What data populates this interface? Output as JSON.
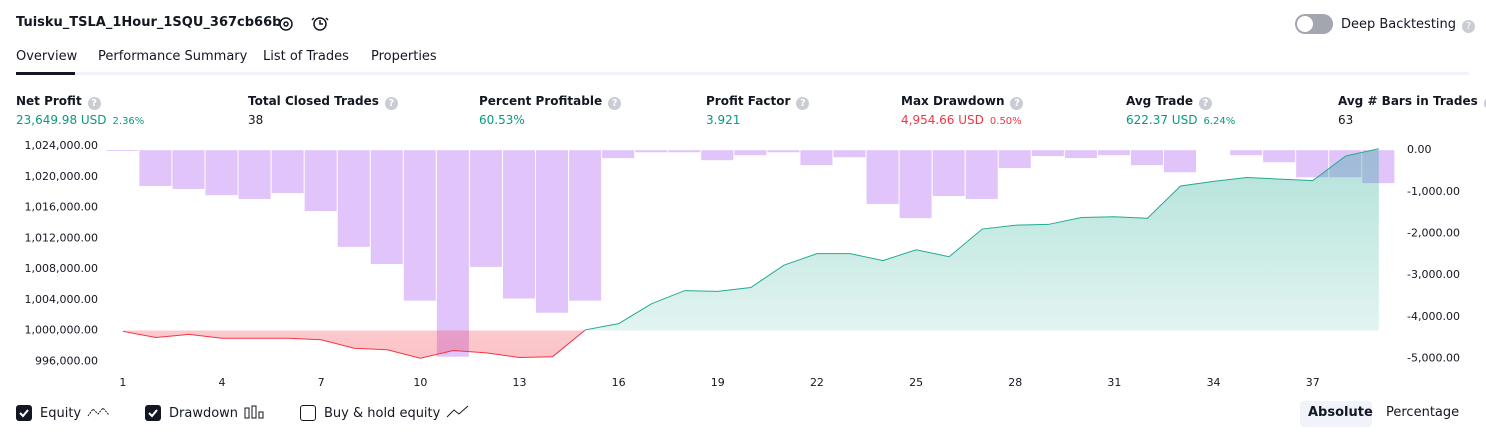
{
  "header": {
    "title": "Tuisku_TSLA_1Hour_1SQU_367cb66b",
    "toggle": "Deep Backtesting"
  },
  "tabs": [
    "Overview",
    "Performance Summary",
    "List of Trades",
    "Properties"
  ],
  "metrics": [
    {
      "label": "Net Profit",
      "value": "23,649.98 USD",
      "pct": "2.36%",
      "color": "#089981"
    },
    {
      "label": "Total Closed Trades",
      "value": "38",
      "color": "#131722"
    },
    {
      "label": "Percent Profitable",
      "value": "60.53%",
      "color": "#089981"
    },
    {
      "label": "Profit Factor",
      "value": "3.921",
      "color": "#089981"
    },
    {
      "label": "Max Drawdown",
      "value": "4,954.66 USD",
      "pct": "0.50%",
      "color": "#f23645"
    },
    {
      "label": "Avg Trade",
      "value": "622.37 USD",
      "pct": "6.24%",
      "color": "#089981"
    },
    {
      "label": "Avg # Bars in Trades",
      "value": "63",
      "color": "#131722"
    }
  ],
  "chart_data": {
    "type": "combo",
    "x": [
      1,
      2,
      3,
      4,
      5,
      6,
      7,
      8,
      9,
      10,
      11,
      12,
      13,
      14,
      15,
      16,
      17,
      18,
      19,
      20,
      21,
      22,
      23,
      24,
      25,
      26,
      27,
      28,
      29,
      30,
      31,
      32,
      33,
      34,
      35,
      36,
      37,
      38,
      39
    ],
    "xlim": [
      0.55,
      39.55
    ],
    "xticks": [
      1,
      4,
      7,
      10,
      13,
      16,
      19,
      22,
      25,
      28,
      31,
      34,
      37
    ],
    "ylim": [
      995000,
      1024000
    ],
    "yticks": [
      {
        "value": 996000,
        "label": "996,000.00"
      },
      {
        "value": 1000000,
        "label": "1,000,000.00"
      },
      {
        "value": 1004000,
        "label": "1,004,000.00"
      },
      {
        "value": 1008000,
        "label": "1,008,000.00"
      },
      {
        "value": 1012000,
        "label": "1,012,000.00"
      },
      {
        "value": 1016000,
        "label": "1,016,000.00"
      },
      {
        "value": 1020000,
        "label": "1,020,000.00"
      },
      {
        "value": 1024000,
        "label": "1,024,000.00"
      }
    ],
    "y2lim": [
      -5250,
      100
    ],
    "y2ticks": [
      {
        "value": 0,
        "label": "0.00"
      },
      {
        "value": -1000,
        "label": "-1,000.00"
      },
      {
        "value": -2000,
        "label": "-2,000.00"
      },
      {
        "value": -3000,
        "label": "-3,000.00"
      },
      {
        "value": -4000,
        "label": "-4,000.00"
      },
      {
        "value": -5000,
        "label": "-5,000.00"
      }
    ],
    "baseline": 1000000,
    "series": [
      {
        "name": "Equity",
        "type": "line",
        "color": "#22ab94",
        "color_down": "#f23645",
        "values": [
          999900,
          999100,
          999500,
          999000,
          999000,
          999000,
          998800,
          997700,
          997500,
          996400,
          997400,
          997100,
          996500,
          996600,
          1000100,
          1000900,
          1003500,
          1005200,
          1005100,
          1005600,
          1008500,
          1010000,
          1010000,
          1009100,
          1010500,
          1009600,
          1013200,
          1013700,
          1013800,
          1014700,
          1014800,
          1014600,
          1018800,
          1019400,
          1019900,
          1019700,
          1019500,
          1022700,
          1023650
        ]
      },
      {
        "name": "Drawdown",
        "type": "bar",
        "axis": "y2",
        "color": "#dcbaf9",
        "values": [
          -20,
          -860,
          -930,
          -1080,
          -1170,
          -1030,
          -1460,
          -2320,
          -2730,
          -3610,
          -4954.66,
          -2800,
          -3560,
          -3900,
          -3610,
          -190,
          -50,
          -50,
          -240,
          -120,
          -50,
          -360,
          -170,
          -1290,
          -1630,
          -1100,
          -1170,
          -430,
          -140,
          -190,
          -120,
          -360,
          -530,
          0,
          -120,
          -290,
          -650,
          -650,
          -790
        ]
      }
    ]
  },
  "legend": [
    {
      "label": "Equity",
      "checked": true
    },
    {
      "label": "Drawdown",
      "checked": true
    },
    {
      "label": "Buy & hold equity",
      "checked": false
    }
  ],
  "buttons": [
    "Absolute",
    "Percentage"
  ]
}
